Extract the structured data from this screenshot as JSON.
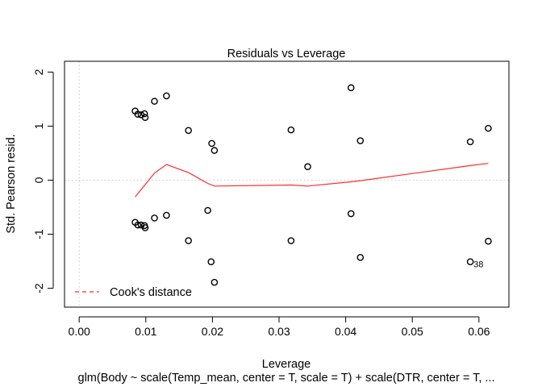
{
  "chart_data": {
    "type": "scatter",
    "title": "Residuals vs Leverage",
    "xlabel": "Leverage",
    "ylabel": "Std. Pearson resid.",
    "subtitle": "glm(Body ~ scale(Temp_mean, center = T, scale = T) + scale(DTR, center = T, ...",
    "xlim": [
      -0.0022,
      0.0645
    ],
    "ylim": [
      -2.35,
      2.2
    ],
    "x_ticks": [
      "0.00",
      "0.01",
      "0.02",
      "0.03",
      "0.04",
      "0.05",
      "0.06"
    ],
    "y_ticks": [
      "-2",
      "-1",
      "0",
      "1",
      "2"
    ],
    "reference_lines": {
      "x": 0,
      "y": 0,
      "style": "dotted",
      "color": "#c8c8c8"
    },
    "points": [
      {
        "x": 0.0084,
        "y": 1.28
      },
      {
        "x": 0.0088,
        "y": 1.22
      },
      {
        "x": 0.0093,
        "y": 1.21
      },
      {
        "x": 0.0098,
        "y": 1.23
      },
      {
        "x": 0.0099,
        "y": 1.16
      },
      {
        "x": 0.0113,
        "y": 1.46
      },
      {
        "x": 0.0131,
        "y": 1.56
      },
      {
        "x": 0.0164,
        "y": 0.92
      },
      {
        "x": 0.0199,
        "y": 0.68
      },
      {
        "x": 0.0203,
        "y": 0.55
      },
      {
        "x": 0.0318,
        "y": 0.93
      },
      {
        "x": 0.0343,
        "y": 0.25
      },
      {
        "x": 0.0408,
        "y": 1.71
      },
      {
        "x": 0.0422,
        "y": 0.73
      },
      {
        "x": 0.0587,
        "y": 0.71
      },
      {
        "x": 0.0614,
        "y": 0.96
      },
      {
        "x": 0.0084,
        "y": -0.78
      },
      {
        "x": 0.0088,
        "y": -0.83
      },
      {
        "x": 0.0093,
        "y": -0.83
      },
      {
        "x": 0.0098,
        "y": -0.84
      },
      {
        "x": 0.0099,
        "y": -0.88
      },
      {
        "x": 0.0113,
        "y": -0.7
      },
      {
        "x": 0.0131,
        "y": -0.65
      },
      {
        "x": 0.0164,
        "y": -1.12
      },
      {
        "x": 0.0193,
        "y": -0.56
      },
      {
        "x": 0.0198,
        "y": -1.51
      },
      {
        "x": 0.0203,
        "y": -1.89
      },
      {
        "x": 0.0318,
        "y": -1.12
      },
      {
        "x": 0.0408,
        "y": -0.62
      },
      {
        "x": 0.0422,
        "y": -1.43
      },
      {
        "x": 0.0587,
        "y": -1.51
      },
      {
        "x": 0.0614,
        "y": -1.13
      }
    ],
    "point_labels": [
      {
        "x": 0.0587,
        "y": -1.51,
        "text": "38"
      }
    ],
    "smooth_line": {
      "color": "#ff2b2b",
      "x": [
        0.0084,
        0.0113,
        0.0131,
        0.0164,
        0.0193,
        0.0203,
        0.0318,
        0.0343,
        0.0408,
        0.0422,
        0.0587,
        0.0614
      ],
      "y": [
        -0.31,
        0.13,
        0.29,
        0.14,
        -0.06,
        -0.11,
        -0.09,
        -0.11,
        -0.03,
        -0.01,
        0.27,
        0.31
      ]
    },
    "legend": {
      "placement": "bottom-left",
      "label": "Cook's distance",
      "color": "#ff2b2b",
      "line_style": "dashed"
    },
    "grid": false
  }
}
